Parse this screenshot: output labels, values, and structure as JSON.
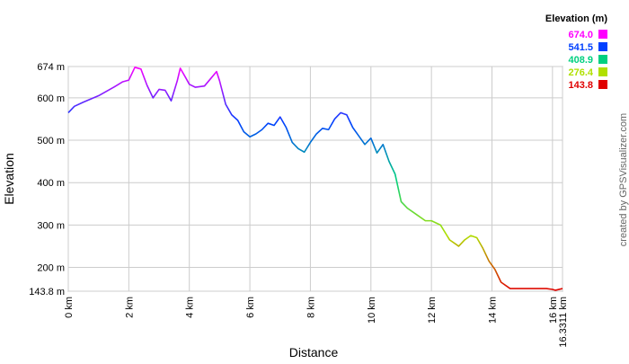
{
  "chart_data": {
    "type": "line",
    "x_label": "Distance",
    "y_label": "Elevation",
    "legend_title": "Elevation (m)",
    "credit": "created by GPSVisualizer.com",
    "grid": true,
    "xlim": [
      0,
      16.3311
    ],
    "ylim": [
      143.8,
      674
    ],
    "xticks": [
      {
        "value": 0,
        "label": "0 km"
      },
      {
        "value": 2,
        "label": "2 km"
      },
      {
        "value": 4,
        "label": "4 km"
      },
      {
        "value": 6,
        "label": "6 km"
      },
      {
        "value": 8,
        "label": "8 km"
      },
      {
        "value": 10,
        "label": "10 km"
      },
      {
        "value": 12,
        "label": "12 km"
      },
      {
        "value": 14,
        "label": "14 km"
      },
      {
        "value": 16,
        "label": "16 km"
      },
      {
        "value": 16.3311,
        "label": "16.3311 km"
      }
    ],
    "yticks": [
      {
        "value": 143.8,
        "label": "143.8 m"
      },
      {
        "value": 200,
        "label": "200 m"
      },
      {
        "value": 300,
        "label": "300 m"
      },
      {
        "value": 400,
        "label": "400 m"
      },
      {
        "value": 500,
        "label": "500 m"
      },
      {
        "value": 600,
        "label": "600 m"
      },
      {
        "value": 674,
        "label": "674 m"
      }
    ],
    "color_scale": [
      {
        "value": 674,
        "label": "674.0",
        "color": "#ff00ff"
      },
      {
        "value": 541.5,
        "label": "541.5",
        "color": "#0040ff"
      },
      {
        "value": 408.9,
        "label": "408.9",
        "color": "#00d080"
      },
      {
        "value": 276.4,
        "label": "276.4",
        "color": "#b0e000"
      },
      {
        "value": 143.8,
        "label": "143.8",
        "color": "#e00000"
      }
    ],
    "x": [
      0,
      0.2,
      0.5,
      1.0,
      1.5,
      1.8,
      2.0,
      2.2,
      2.4,
      2.6,
      2.8,
      3.0,
      3.2,
      3.4,
      3.6,
      3.7,
      3.9,
      4.0,
      4.2,
      4.5,
      4.7,
      4.9,
      5.0,
      5.2,
      5.4,
      5.6,
      5.8,
      6.0,
      6.2,
      6.4,
      6.6,
      6.8,
      7.0,
      7.2,
      7.4,
      7.6,
      7.8,
      8.0,
      8.2,
      8.4,
      8.6,
      8.8,
      9.0,
      9.2,
      9.4,
      9.6,
      9.8,
      10.0,
      10.2,
      10.4,
      10.6,
      10.8,
      11.0,
      11.2,
      11.5,
      11.8,
      12.0,
      12.3,
      12.6,
      12.9,
      13.1,
      13.3,
      13.5,
      13.7,
      13.9,
      14.1,
      14.3,
      14.6,
      15.0,
      15.5,
      15.8,
      16.0,
      16.1,
      16.3311
    ],
    "values": [
      565,
      580,
      590,
      605,
      625,
      638,
      642,
      672,
      668,
      630,
      600,
      620,
      618,
      593,
      640,
      670,
      645,
      632,
      625,
      628,
      645,
      662,
      640,
      585,
      560,
      547,
      520,
      508,
      515,
      525,
      540,
      535,
      555,
      530,
      495,
      480,
      472,
      495,
      515,
      528,
      525,
      550,
      565,
      560,
      530,
      510,
      490,
      505,
      470,
      490,
      450,
      420,
      355,
      340,
      325,
      310,
      310,
      300,
      265,
      250,
      265,
      275,
      270,
      245,
      215,
      195,
      165,
      150,
      150,
      150,
      150,
      148,
      146,
      150
    ]
  }
}
